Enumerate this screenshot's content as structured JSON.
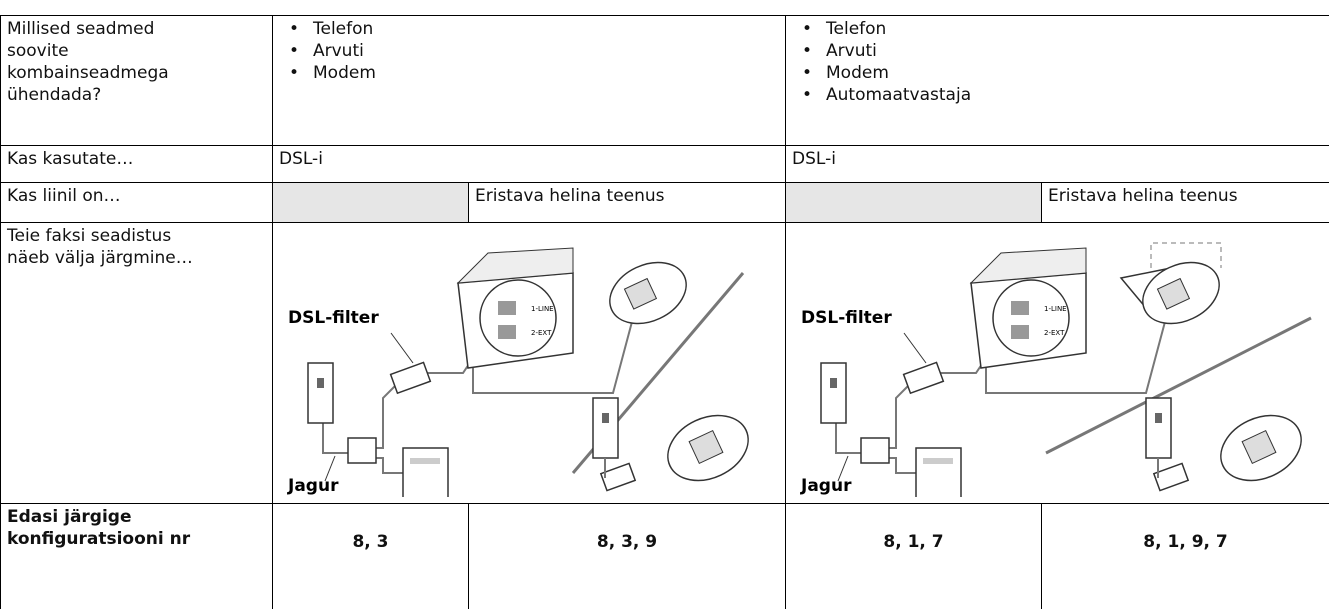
{
  "devices": {
    "label": "Millised seadmed soovite kombainseadmega ühendada?",
    "left": [
      "Telefon",
      "Arvuti",
      "Modem"
    ],
    "right": [
      "Telefon",
      "Arvuti",
      "Modem",
      "Automaatvastaja"
    ]
  },
  "using": {
    "label": "Kas kasutate…",
    "left": "DSL-i",
    "right": "DSL-i"
  },
  "line": {
    "label": "Kas liinil on…",
    "left": "Eristava helina teenus",
    "right": "Eristava helina teenus"
  },
  "setup": {
    "label": "Teie faksi seadistus näeb välja järgmine…",
    "left": {
      "filter": "DSL-filter",
      "splitter": "Jagur",
      "port1": "1-LINE",
      "port2": "2-EXT"
    },
    "right": {
      "filter": "DSL-filter",
      "splitter": "Jagur",
      "port1": "1-LINE",
      "port2": "2-EXT"
    }
  },
  "config": {
    "label": "Edasi järgige konfiguratsiooni nr",
    "values": [
      "8, 3",
      "8, 3, 9",
      "8, 1, 7",
      "8, 1, 9, 7"
    ]
  }
}
